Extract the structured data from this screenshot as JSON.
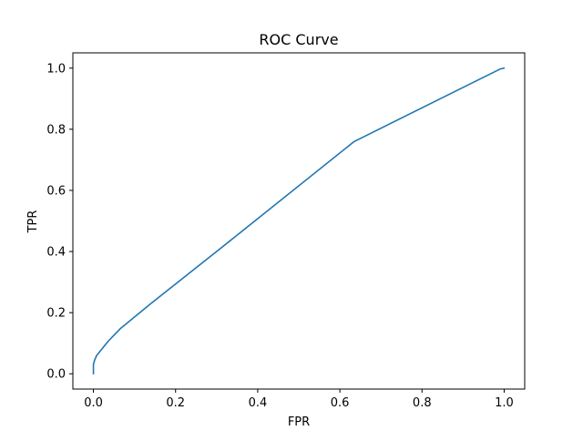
{
  "chart_data": {
    "type": "line",
    "title": "ROC Curve",
    "xlabel": "FPR",
    "ylabel": "TPR",
    "xlim": [
      -0.05,
      1.05
    ],
    "ylim": [
      -0.05,
      1.05
    ],
    "xticks": [
      0.0,
      0.2,
      0.4,
      0.6,
      0.8,
      1.0
    ],
    "xtick_labels": [
      "0.0",
      "0.2",
      "0.4",
      "0.6",
      "0.8",
      "1.0"
    ],
    "yticks": [
      0.0,
      0.2,
      0.4,
      0.6,
      0.8,
      1.0
    ],
    "ytick_labels": [
      "0.0",
      "0.2",
      "0.4",
      "0.6",
      "0.8",
      "1.0"
    ],
    "grid": false,
    "legend": null,
    "series": [
      {
        "color": "#1f77b4",
        "x": [
          0.0,
          0.0,
          0.003,
          0.008,
          0.02,
          0.035,
          0.065,
          0.14,
          0.3,
          0.635,
          0.99,
          1.0
        ],
        "y": [
          0.0,
          0.03,
          0.045,
          0.06,
          0.08,
          0.105,
          0.147,
          0.23,
          0.4,
          0.76,
          0.997,
          1.0
        ]
      }
    ]
  }
}
